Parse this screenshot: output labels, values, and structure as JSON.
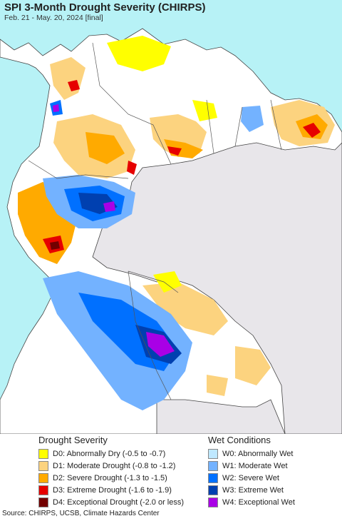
{
  "title": "SPI 3-Month Drought Severity (CHIRPS)",
  "subtitle": "Feb. 21 - May. 20, 2024 [final]",
  "colors": {
    "ocean": "#b7f2f6",
    "land": "#ffffff",
    "outside": "#e8e6ea",
    "borders": "#555555"
  },
  "legend": {
    "drought": {
      "title": "Drought Severity",
      "items": [
        {
          "label": "D0: Abnormally Dry (-0.5 to -0.7)",
          "color": "#ffff00"
        },
        {
          "label": "D1: Moderate Drought (-0.8 to -1.2)",
          "color": "#fcd37f"
        },
        {
          "label": "D2: Severe Drought (-1.3 to -1.5)",
          "color": "#ffaa00"
        },
        {
          "label": "D3: Extreme Drought (-1.6 to -1.9)",
          "color": "#e60000"
        },
        {
          "label": "D4: Exceptional Drought (-2.0 or less)",
          "color": "#730000"
        }
      ]
    },
    "wet": {
      "title": "Wet Conditions",
      "items": [
        {
          "label": "W0: Abnormally Wet",
          "color": "#bfe8ff"
        },
        {
          "label": "W1: Moderate Wet",
          "color": "#73b2ff"
        },
        {
          "label": "W2: Severe Wet",
          "color": "#0070ff"
        },
        {
          "label": "W3: Extreme Wet",
          "color": "#0040b0"
        },
        {
          "label": "W4: Exceptional Wet",
          "color": "#a900e6"
        }
      ]
    }
  },
  "source": "Source: CHIRPS, UCSB, Climate Hazards Center"
}
